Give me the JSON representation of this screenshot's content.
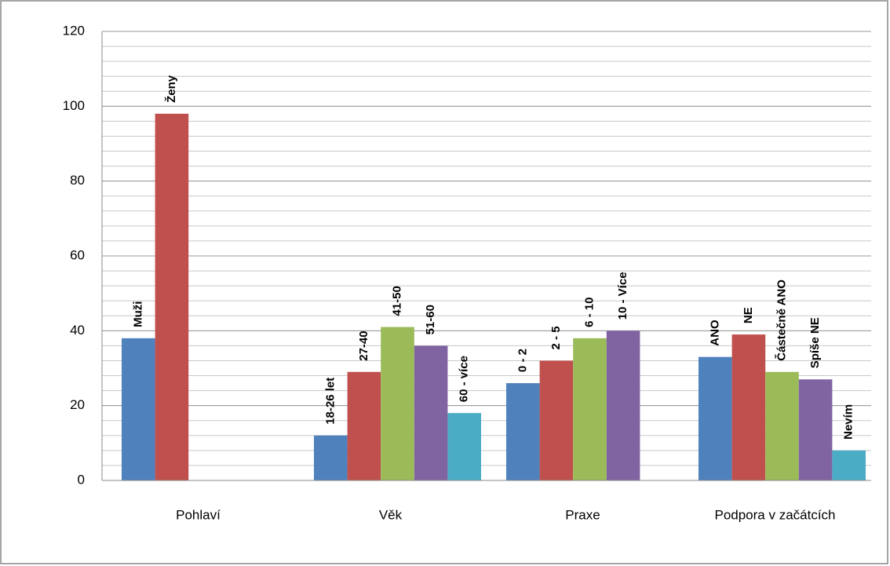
{
  "chart_data": {
    "type": "bar",
    "categories": [
      "Pohlaví",
      "Věk",
      "Praxe",
      "Podpora v začátcích"
    ],
    "series": [
      {
        "color": "#4f81bd",
        "values": [
          38,
          12,
          26,
          33
        ],
        "labels": [
          "Muži",
          "18-26 let",
          "0 - 2",
          "ANO"
        ]
      },
      {
        "color": "#c0504d",
        "values": [
          98,
          29,
          32,
          39
        ],
        "labels": [
          "Ženy",
          "27-40",
          "2 - 5",
          "NE"
        ]
      },
      {
        "color": "#9bbb59",
        "values": [
          null,
          41,
          38,
          29
        ],
        "labels": [
          null,
          "41-50",
          "6 - 10",
          "Částečně ANO"
        ]
      },
      {
        "color": "#8064a2",
        "values": [
          null,
          36,
          40,
          27
        ],
        "labels": [
          null,
          "51-60",
          "10 - Více",
          "Spíše NE"
        ]
      },
      {
        "color": "#4bacc6",
        "values": [
          null,
          18,
          null,
          8
        ],
        "labels": [
          null,
          "60 - více",
          null,
          "Nevím"
        ]
      }
    ],
    "ylim": [
      0,
      120
    ],
    "yticks": [
      0,
      20,
      40,
      60,
      80,
      100,
      120
    ],
    "grid": true,
    "minor_grid": 4
  }
}
